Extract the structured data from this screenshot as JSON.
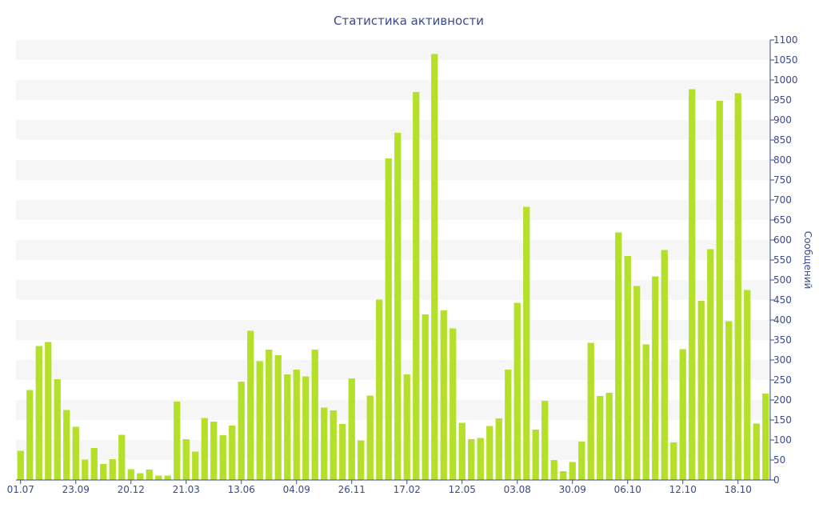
{
  "chart_data": {
    "type": "bar",
    "title": "Статистика активности",
    "xlabel": "",
    "ylabel": "Сообщений",
    "y_axis_position": "right",
    "ylim": [
      0,
      1100
    ],
    "y_ticks": [
      0,
      50,
      100,
      150,
      200,
      250,
      300,
      350,
      400,
      450,
      500,
      550,
      600,
      650,
      700,
      750,
      800,
      850,
      900,
      950,
      1000,
      1050,
      1100
    ],
    "x_tick_labels": [
      {
        "label": "01.07",
        "index": 0
      },
      {
        "label": "23.09",
        "index": 6
      },
      {
        "label": "20.12",
        "index": 12
      },
      {
        "label": "21.03",
        "index": 18
      },
      {
        "label": "13.06",
        "index": 24
      },
      {
        "label": "04.09",
        "index": 30
      },
      {
        "label": "26.11",
        "index": 36
      },
      {
        "label": "17.02",
        "index": 42
      },
      {
        "label": "12.05",
        "index": 48
      },
      {
        "label": "03.08",
        "index": 54
      },
      {
        "label": "30.09",
        "index": 60
      },
      {
        "label": "06.10",
        "index": 66
      },
      {
        "label": "12.10",
        "index": 72
      },
      {
        "label": "18.10",
        "index": 78
      }
    ],
    "grid": "alternating horizontal bands",
    "colors": {
      "bar": "#b5e02a",
      "axis": "#3a4a8a",
      "band": "#f6f6f6"
    },
    "values": [
      73,
      225,
      335,
      345,
      252,
      175,
      133,
      51,
      80,
      40,
      52,
      113,
      27,
      17,
      26,
      11,
      11,
      196,
      102,
      71,
      155,
      146,
      112,
      136,
      246,
      373,
      297,
      326,
      312,
      264,
      276,
      259,
      326,
      181,
      174,
      140,
      254,
      99,
      211,
      451,
      804,
      868,
      264,
      970,
      414,
      1065,
      424,
      379,
      143,
      102,
      105,
      135,
      154,
      276,
      443,
      683,
      126,
      198,
      50,
      22,
      45,
      96,
      343,
      210,
      218,
      619,
      560,
      485,
      339,
      509,
      575,
      94,
      327,
      977,
      448,
      577,
      948,
      397,
      967,
      475,
      141,
      216
    ]
  }
}
